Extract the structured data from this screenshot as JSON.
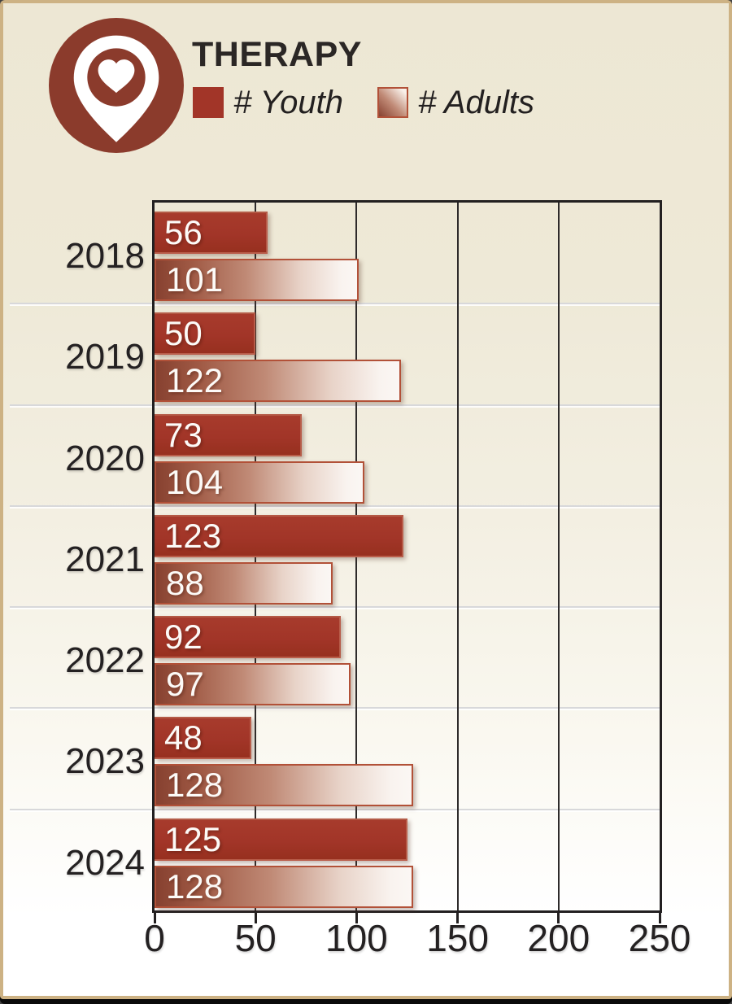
{
  "header": {
    "title": "THERAPY",
    "legend": {
      "youth_label": "# Youth",
      "adults_label": "# Adults"
    }
  },
  "colors": {
    "youth_red": "#A23528",
    "adults_gradient_dark": "#874130",
    "adults_gradient_light": "#FBF7F4",
    "adults_border": "#B25138",
    "icon_red": "#8B3B2C",
    "background_beige": "#EDE7D4",
    "frame_tan": "#CDB284",
    "text_dark": "#242122",
    "separator_gray": "#D8D8DA"
  },
  "chart_data": {
    "type": "bar",
    "orientation": "horizontal",
    "title": "THERAPY",
    "categories": [
      "2018",
      "2019",
      "2020",
      "2021",
      "2022",
      "2023",
      "2024"
    ],
    "series": [
      {
        "name": "# Youth",
        "values": [
          56,
          50,
          73,
          123,
          92,
          48,
          125
        ]
      },
      {
        "name": "# Adults",
        "values": [
          101,
          122,
          104,
          88,
          97,
          128,
          128
        ]
      }
    ],
    "xlim": [
      0,
      250
    ],
    "x_ticks": [
      0,
      50,
      100,
      150,
      200,
      250
    ],
    "grid": true,
    "bar_labels": "values shown inside left end of bars",
    "legend_position": "top-left under title"
  }
}
